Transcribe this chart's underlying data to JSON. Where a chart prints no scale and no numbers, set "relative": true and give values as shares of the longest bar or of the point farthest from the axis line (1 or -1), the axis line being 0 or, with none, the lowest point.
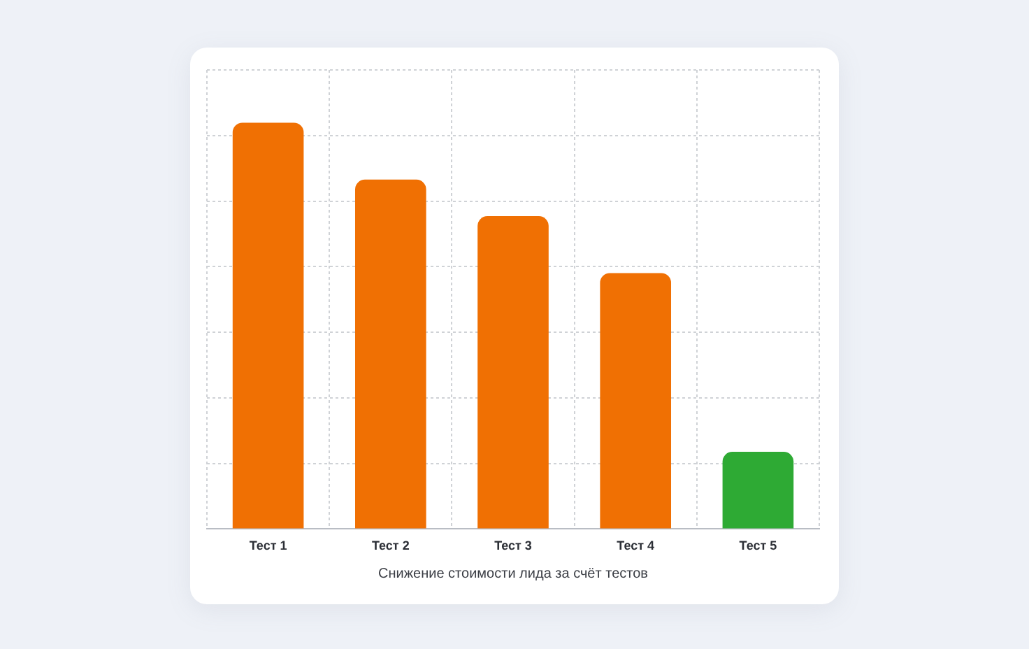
{
  "chart_data": {
    "type": "bar",
    "relative": true,
    "categories": [
      "Тест 1",
      "Тест 2",
      "Тест 3",
      "Тест 4",
      "Тест 5"
    ],
    "values": [
      1,
      0.86,
      0.77,
      0.63,
      0.19
    ],
    "colors": [
      "#f07003",
      "#f07003",
      "#f07003",
      "#f07003",
      "#2eaa34"
    ],
    "xlabel": "Снижение стоимости лида за счёт тестов",
    "grid": true
  }
}
